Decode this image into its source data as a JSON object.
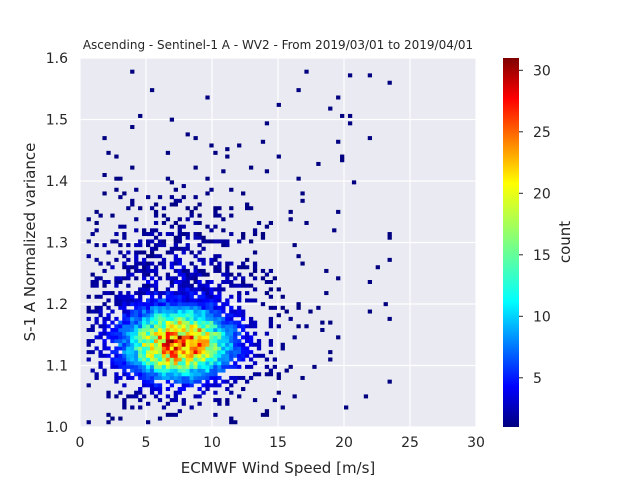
{
  "chart_data": {
    "type": "heatmap",
    "title": "Ascending - Sentinel-1 A - WV2 - From 2019/03/01 to 2019/04/01",
    "xlabel": "ECMWF Wind Speed [m/s]",
    "ylabel": "S-1 A Normalized variance",
    "xlim": [
      0,
      30
    ],
    "ylim": [
      1.0,
      1.6
    ],
    "xticks": [
      "0",
      "5",
      "10",
      "15",
      "20",
      "25",
      "30"
    ],
    "yticks": [
      "1.0",
      "1.1",
      "1.2",
      "1.3",
      "1.4",
      "1.5",
      "1.6"
    ],
    "grid": true,
    "colorbar": {
      "label": "count",
      "min": 1,
      "max": 31,
      "ticks": [
        "5",
        "10",
        "15",
        "20",
        "25",
        "30"
      ],
      "colormap": "jet"
    },
    "density_model": {
      "bin_width_x": 0.3,
      "bin_height_y": 0.006,
      "peak_count": 30,
      "core": {
        "center_x": 7.5,
        "center_y": 1.135,
        "sigma_x": 2.6,
        "sigma_y": 0.035
      },
      "spread": {
        "center_x": 7.0,
        "center_y": 1.2,
        "sigma_x": 4.2,
        "sigma_y": 0.09
      },
      "x_range_occupied": [
        0.5,
        23.5
      ],
      "y_range_occupied": [
        1.005,
        1.585
      ]
    }
  }
}
